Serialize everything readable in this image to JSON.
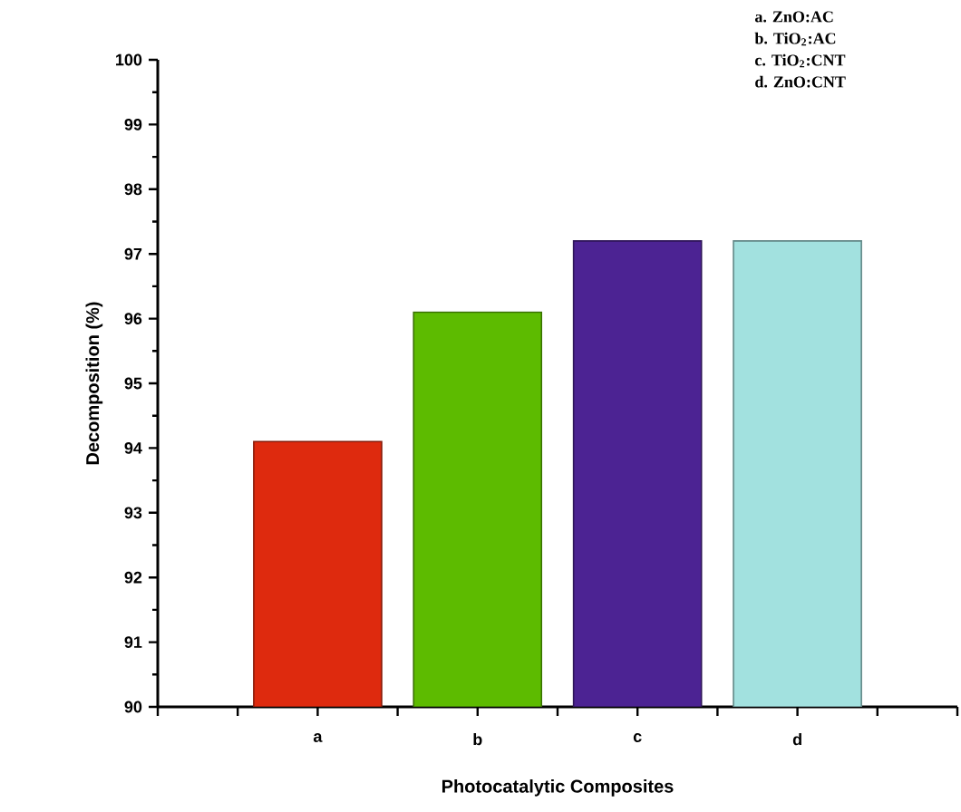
{
  "chart_data": {
    "type": "bar",
    "xlabel": "Photocatalytic Composites",
    "ylabel": "Decomposition (%)",
    "categories": [
      "a",
      "b",
      "c",
      "d"
    ],
    "values": [
      94.1,
      96.1,
      97.2,
      97.2
    ],
    "colors": [
      "#de2a0e",
      "#5dbb00",
      "#4c2393",
      "#a2e1df"
    ],
    "ylim": [
      90,
      100
    ],
    "yticks": [
      90,
      91,
      92,
      93,
      94,
      95,
      96,
      97,
      98,
      99,
      100
    ],
    "annotations": [
      "a. ZnO:AC",
      "b. TiO$_{2}$:AC",
      "c. TiO$_{2}$:CNT",
      "d. ZnO:CNT"
    ]
  }
}
